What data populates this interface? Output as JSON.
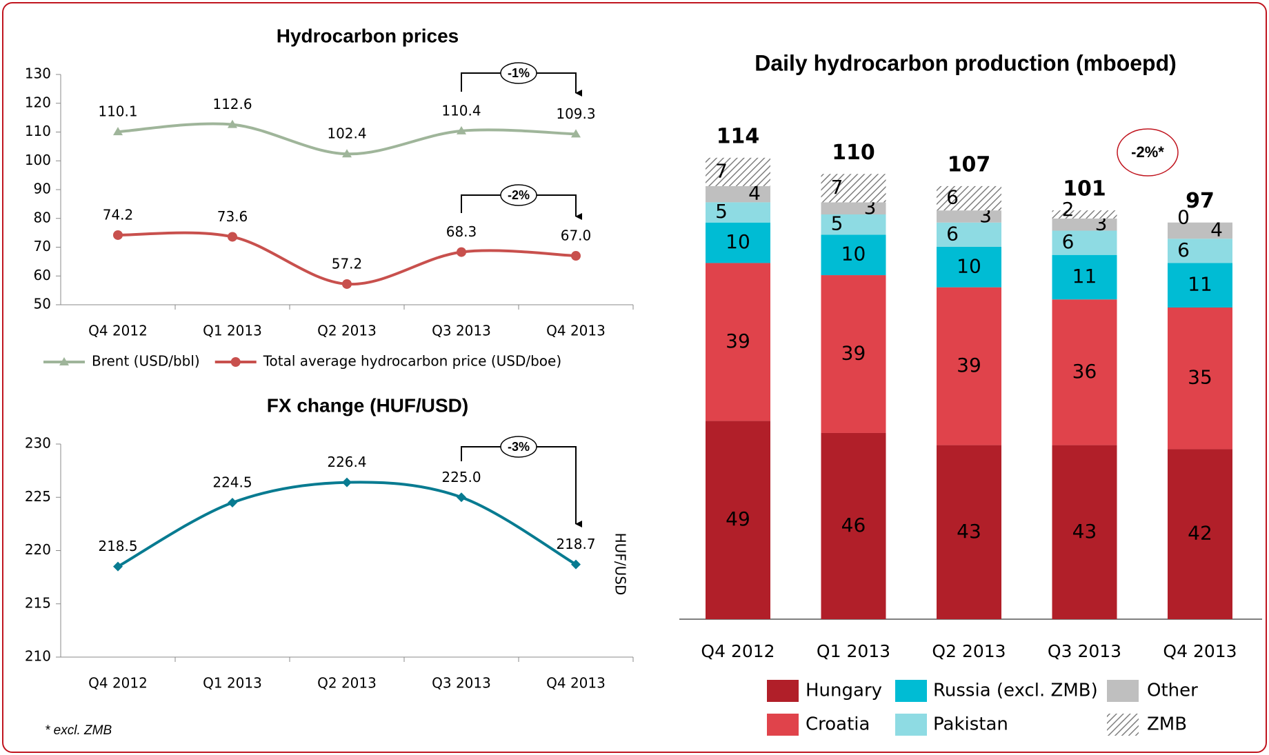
{
  "chart_data": [
    {
      "type": "line",
      "title": "Hydrocarbon prices",
      "categories": [
        "Q4 2012",
        "Q1 2013",
        "Q2 2013",
        "Q3 2013",
        "Q4 2013"
      ],
      "series": [
        {
          "name": "Brent (USD/bbl)",
          "color": "#9fb59a",
          "marker": "triangle",
          "values": [
            110.1,
            112.6,
            102.4,
            110.4,
            109.3
          ],
          "value_labels": [
            "110.1",
            "112.6",
            "102.4",
            "110.4",
            "109.3"
          ]
        },
        {
          "name": "Total average hydrocarbon price (USD/boe)",
          "color": "#c8504d",
          "marker": "circle",
          "values": [
            74.2,
            73.6,
            57.2,
            68.3,
            67
          ],
          "value_labels": [
            "74.2",
            "73.6",
            "57.2",
            "68.3",
            "67.0"
          ]
        }
      ],
      "ylim": [
        50,
        130
      ],
      "yticks": [
        50,
        60,
        70,
        80,
        90,
        100,
        110,
        120,
        130
      ],
      "annotations": [
        "-1%",
        "-2%"
      ]
    },
    {
      "type": "line",
      "title": "FX change (HUF/USD)",
      "ylabel": "HUF/USD",
      "categories": [
        "Q4 2012",
        "Q1 2013",
        "Q2 2013",
        "Q3 2013",
        "Q4 2013"
      ],
      "series": [
        {
          "color": "#087b91",
          "marker": "diamond",
          "values": [
            218.5,
            224.5,
            226.4,
            225,
            218.7
          ],
          "value_labels": [
            "218.5",
            "224.5",
            "226.4",
            "225.0",
            "218.7"
          ]
        }
      ],
      "ylim": [
        210,
        230
      ],
      "yticks": [
        210,
        215,
        220,
        225,
        230
      ],
      "annotations": [
        "-3%"
      ],
      "footnote": "* excl. ZMB"
    },
    {
      "type": "stacked_bar",
      "title": "Daily hydrocarbon production (mboepd)",
      "categories": [
        "Q4 2012",
        "Q1 2013",
        "Q2 2013",
        "Q3 2013",
        "Q4 2013"
      ],
      "series": [
        {
          "name": "Hungary",
          "color": "#b11f29",
          "values": [
            49,
            46,
            43,
            43,
            42
          ]
        },
        {
          "name": "Croatia",
          "color": "#e0434b",
          "values": [
            39,
            39,
            39,
            36,
            35
          ]
        },
        {
          "name": "Russia (excl. ZMB)",
          "color": "#00bcd4",
          "values": [
            10,
            10,
            10,
            11,
            11
          ]
        },
        {
          "name": "Pakistan",
          "color": "#8edbe3",
          "values": [
            5,
            5,
            6,
            6,
            6
          ]
        },
        {
          "name": "Other",
          "color": "#bfbfbf",
          "values": [
            4,
            3,
            3,
            3,
            4
          ]
        },
        {
          "name": "ZMB",
          "color": "#7f7f7f",
          "hatch": true,
          "values": [
            7,
            7,
            6,
            2,
            0
          ]
        }
      ],
      "totals": [
        114,
        110,
        107,
        101,
        97
      ],
      "annotations": [
        "-2%*"
      ]
    }
  ]
}
